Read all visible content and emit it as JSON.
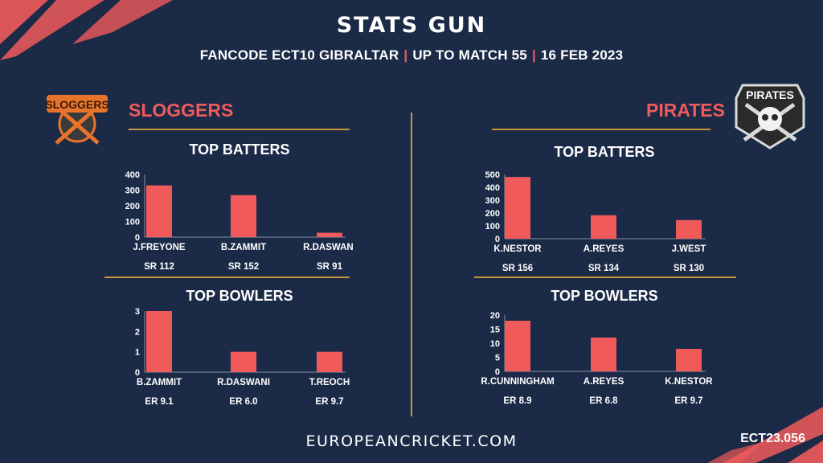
{
  "header": {
    "title": "STATS GUN",
    "subtitle_parts": [
      "FANCODE ECT10 GIBRALTAR",
      "UP TO MATCH  55",
      "16 FEB 2023"
    ]
  },
  "teams": {
    "left": {
      "name": "SLOGGERS",
      "logo_text": "SLOGGERS"
    },
    "right": {
      "name": "PIRATES",
      "logo_text": "PIRATES"
    }
  },
  "footer": {
    "site": "EUROPEANCRICKET.COM",
    "code": "ECT23.056"
  },
  "colors": {
    "background": "#1b2a47",
    "accent": "#f05a5a",
    "gold": "#c8963c",
    "bar": "#f05a5a"
  },
  "chart_data": [
    {
      "id": "sloggers-batters",
      "type": "bar",
      "title": "TOP BATTERS",
      "categories": [
        "J.FREYONE",
        "B.ZAMMIT",
        "R.DASWANI"
      ],
      "values": [
        330,
        268,
        28
      ],
      "sublabels": [
        "SR 112",
        "SR 152",
        "SR 91"
      ],
      "ylim": [
        0,
        400
      ],
      "yticks": [
        0,
        100,
        200,
        300,
        400
      ]
    },
    {
      "id": "sloggers-bowlers",
      "type": "bar",
      "title": "TOP BOWLERS",
      "categories": [
        "B.ZAMMIT",
        "R.DASWANI",
        "T.REOCH"
      ],
      "values": [
        3,
        1,
        1
      ],
      "sublabels": [
        "ER 9.1",
        "ER 6.0",
        "ER 9.7"
      ],
      "ylim": [
        0,
        3
      ],
      "yticks": [
        0,
        1,
        2,
        3
      ]
    },
    {
      "id": "pirates-batters",
      "type": "bar",
      "title": "TOP BATTERS",
      "categories": [
        "K.NESTOR",
        "A.REYES",
        "J.WEST"
      ],
      "values": [
        480,
        183,
        145
      ],
      "sublabels": [
        "SR 156",
        "SR 134",
        "SR 130"
      ],
      "ylim": [
        0,
        500
      ],
      "yticks": [
        0,
        100,
        200,
        300,
        400,
        500
      ]
    },
    {
      "id": "pirates-bowlers",
      "type": "bar",
      "title": "TOP BOWLERS",
      "categories": [
        "R.CUNNINGHAM",
        "A.REYES",
        "K.NESTOR"
      ],
      "values": [
        18,
        12,
        8
      ],
      "sublabels": [
        "ER 8.9",
        "ER 6.8",
        "ER 9.7"
      ],
      "ylim": [
        0,
        20
      ],
      "yticks": [
        0,
        5,
        10,
        15,
        20
      ]
    }
  ]
}
